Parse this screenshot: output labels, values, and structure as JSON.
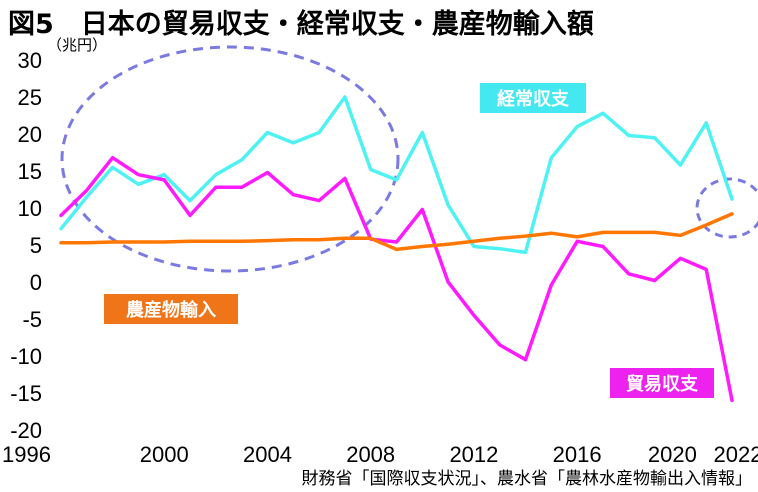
{
  "chart_data": {
    "type": "line",
    "title": "図5　日本の貿易収支・経常収支・農産物輸入額",
    "ylabel": "（兆円）",
    "xlabel": "",
    "ylim": [
      -20,
      30
    ],
    "y_ticks": [
      30,
      25,
      20,
      15,
      10,
      5,
      0,
      -5,
      -10,
      -15,
      -20
    ],
    "x_tick_labels": [
      "1996",
      "2000",
      "2004",
      "2008",
      "2012",
      "2016",
      "2020",
      "2022"
    ],
    "x": [
      1996,
      1997,
      1998,
      1999,
      2000,
      2001,
      2002,
      2003,
      2004,
      2005,
      2006,
      2007,
      2008,
      2009,
      2010,
      2011,
      2012,
      2013,
      2014,
      2015,
      2016,
      2017,
      2018,
      2019,
      2020,
      2021,
      2022
    ],
    "series": [
      {
        "name": "経常収支",
        "color": "#4ff2f2",
        "label_color": "#44e8f0",
        "values": [
          7.2,
          11.5,
          15.5,
          13.2,
          14.5,
          11.0,
          14.5,
          16.5,
          20.2,
          18.8,
          20.2,
          25.0,
          15.2,
          13.8,
          20.2,
          10.4,
          4.8,
          4.5,
          4.0,
          16.8,
          21.0,
          22.8,
          19.8,
          19.5,
          15.8,
          21.5,
          11.2
        ]
      },
      {
        "name": "貿易収支",
        "color": "#ff1aff",
        "label_color": "#ee22ee",
        "values": [
          9.0,
          12.4,
          16.8,
          14.5,
          13.8,
          9.0,
          12.8,
          12.8,
          14.8,
          11.8,
          11.0,
          14.0,
          5.8,
          5.4,
          9.8,
          0.0,
          -4.5,
          -8.5,
          -10.5,
          -0.4,
          5.5,
          4.8,
          1.1,
          0.2,
          3.2,
          1.7,
          -16.0
        ]
      },
      {
        "name": "農産物輸入",
        "color": "#ff7700",
        "label_color": "#f07418",
        "values": [
          5.3,
          5.3,
          5.4,
          5.4,
          5.4,
          5.5,
          5.5,
          5.5,
          5.6,
          5.7,
          5.7,
          5.9,
          5.9,
          4.4,
          4.8,
          5.1,
          5.5,
          5.9,
          6.2,
          6.6,
          6.1,
          6.7,
          6.7,
          6.7,
          6.3,
          7.7,
          9.2
        ]
      }
    ],
    "grid": false,
    "highlight_ellipse_color": "#7a7ae0"
  },
  "source_note": "財務省「国際収支状況」、農水省「農林水産物輸出入情報」"
}
